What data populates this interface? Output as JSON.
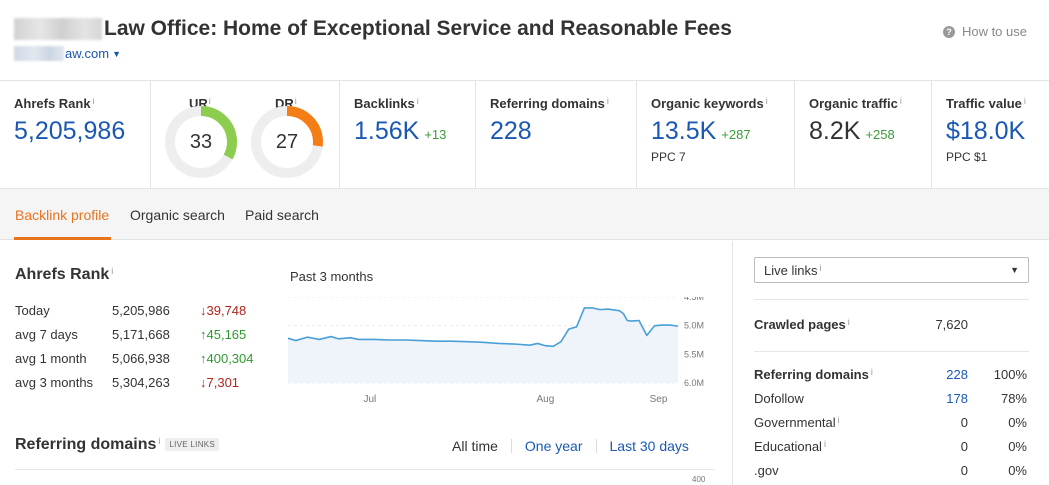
{
  "header": {
    "title": "Law Office: Home of Exceptional Service and Reasonable Fees",
    "domain": "aw.com",
    "how_to_use": "How to use"
  },
  "metrics": {
    "ahrefs_rank": {
      "label": "Ahrefs Rank",
      "value": "5,205,986"
    },
    "ur": {
      "label": "UR",
      "value": "33",
      "percent": 33,
      "color": "#8ccc4f"
    },
    "dr": {
      "label": "DR",
      "value": "27",
      "percent": 27,
      "color": "#f47e16"
    },
    "backlinks": {
      "label": "Backlinks",
      "value": "1.56K",
      "delta": "+13"
    },
    "referring_domains": {
      "label": "Referring domains",
      "value": "228"
    },
    "organic_keywords": {
      "label": "Organic keywords",
      "value": "13.5K",
      "delta": "+287",
      "sub": "PPC 7"
    },
    "organic_traffic": {
      "label": "Organic traffic",
      "value": "8.2K",
      "delta": "+258"
    },
    "traffic_value": {
      "label": "Traffic value",
      "value": "$18.0K",
      "sub": "PPC $1"
    }
  },
  "tabs": [
    {
      "label": "Backlink profile",
      "active": true
    },
    {
      "label": "Organic search",
      "active": false
    },
    {
      "label": "Paid search",
      "active": false
    }
  ],
  "ahrefs_rank_section": {
    "title": "Ahrefs Rank",
    "rows": [
      {
        "period": "Today",
        "value": "5,205,986",
        "change": "39,748",
        "direction": "down"
      },
      {
        "period": "avg 7 days",
        "value": "5,171,668",
        "change": "45,165",
        "direction": "up"
      },
      {
        "period": "avg 1 month",
        "value": "5,066,938",
        "change": "400,304",
        "direction": "up"
      },
      {
        "period": "avg 3 months",
        "value": "5,304,263",
        "change": "7,301",
        "direction": "down"
      }
    ],
    "chart_title": "Past 3 months"
  },
  "referring_domains_section": {
    "title": "Referring domains",
    "badge": "LIVE LINKS",
    "ranges": [
      "All time",
      "One year",
      "Last 30 days"
    ],
    "active_range": "All time",
    "next_axis_tick": "400"
  },
  "right_panel": {
    "select_value": "Live links",
    "crawled_pages": {
      "label": "Crawled pages",
      "value": "7,620"
    },
    "referring_domains": {
      "label": "Referring domains",
      "value": "228",
      "pct": "100%"
    },
    "rows": [
      {
        "label": "Dofollow",
        "value": "178",
        "pct": "78%",
        "has_info": false,
        "link": true
      },
      {
        "label": "Governmental",
        "value": "0",
        "pct": "0%",
        "has_info": true,
        "link": false
      },
      {
        "label": "Educational",
        "value": "0",
        "pct": "0%",
        "has_info": true,
        "link": false
      },
      {
        "label": ".gov",
        "value": "0",
        "pct": "0%",
        "has_info": false,
        "link": false
      }
    ]
  },
  "chart_data": {
    "type": "area",
    "x_tick_labels": [
      "Jul",
      "Aug",
      "Sep"
    ],
    "y_tick_labels": [
      "4.5M",
      "5.0M",
      "5.5M",
      "6.0M"
    ],
    "ylim": [
      4500000,
      6000000
    ],
    "y_inverted": true,
    "series": [
      {
        "color": "#4a9fd8",
        "x": [
          0,
          2,
          5,
          8,
          11,
          13,
          16,
          18,
          22,
          26,
          30,
          34,
          38,
          42,
          46,
          50,
          54,
          58,
          62,
          64,
          66,
          68,
          70,
          72,
          74,
          76,
          78,
          80,
          82,
          84,
          85,
          86,
          87,
          88,
          90,
          92,
          94,
          96,
          98,
          100
        ],
        "y": [
          5.22,
          5.26,
          5.2,
          5.24,
          5.19,
          5.23,
          5.21,
          5.24,
          5.24,
          5.25,
          5.25,
          5.26,
          5.27,
          5.27,
          5.28,
          5.29,
          5.31,
          5.32,
          5.34,
          5.31,
          5.35,
          5.36,
          5.28,
          5.06,
          5.02,
          4.69,
          4.69,
          4.72,
          4.71,
          4.73,
          4.74,
          4.79,
          4.91,
          4.92,
          4.91,
          5.17,
          5.0,
          4.99,
          4.99,
          5.01
        ]
      }
    ]
  }
}
